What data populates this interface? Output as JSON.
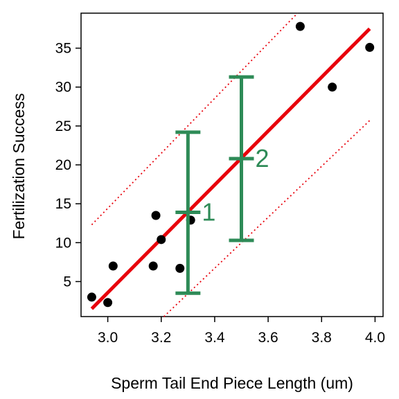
{
  "chart_data": {
    "type": "scatter",
    "xlabel": "Sperm Tail End Piece Length (um)",
    "ylabel": "Fertilization Success",
    "xlim": [
      2.9,
      4.03
    ],
    "ylim": [
      0.5,
      39.5
    ],
    "xticks": [
      3.0,
      3.2,
      3.4,
      3.6,
      3.8,
      4.0
    ],
    "xtick_labels": [
      "3.0",
      "3.2",
      "3.4",
      "3.6",
      "3.8",
      "4.0"
    ],
    "yticks": [
      5,
      10,
      15,
      20,
      25,
      30,
      35
    ],
    "ytick_labels": [
      "5",
      "10",
      "15",
      "20",
      "25",
      "30",
      "35"
    ],
    "grid": false,
    "series": [
      {
        "kind": "points",
        "color": "#000000",
        "x": [
          2.94,
          3.0,
          3.02,
          3.17,
          3.18,
          3.2,
          3.27,
          3.31,
          3.72,
          3.84,
          3.98
        ],
        "y": [
          3.0,
          2.3,
          7.0,
          7.0,
          13.5,
          10.4,
          6.7,
          12.9,
          37.8,
          30.0,
          35.1
        ]
      },
      {
        "kind": "regression-line",
        "color": "#e8000b",
        "x": [
          2.94,
          3.98
        ],
        "y": [
          1.5,
          37.5
        ]
      },
      {
        "kind": "prediction-band-upper",
        "color": "#e8000b",
        "x": [
          2.94,
          3.71
        ],
        "y": [
          12.3,
          39.5
        ]
      },
      {
        "kind": "prediction-band-lower",
        "color": "#e8000b",
        "x": [
          3.21,
          3.98
        ],
        "y": [
          0.5,
          25.7
        ]
      }
    ],
    "intervals": [
      {
        "label": "1",
        "x": 3.3,
        "center": 13.9,
        "low": 3.5,
        "high": 24.2,
        "color": "#2e8b57"
      },
      {
        "label": "2",
        "x": 3.5,
        "center": 20.8,
        "low": 10.3,
        "high": 31.3,
        "color": "#2e8b57"
      }
    ]
  }
}
